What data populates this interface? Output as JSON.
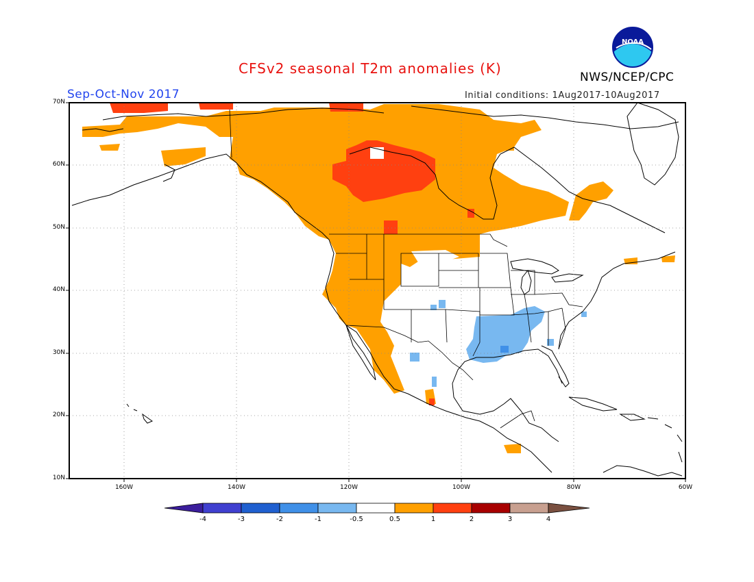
{
  "header": {
    "title": "CFSv2 seasonal T2m anomalies (K)",
    "organization": "NWS/NCEP/CPC",
    "logo_text": "NOAA",
    "season": "Sep-Oct-Nov 2017",
    "initial_conditions": "Initial conditions: 1Aug2017-10Aug2017"
  },
  "map": {
    "lat_labels": [
      "70N",
      "60N",
      "50N",
      "40N",
      "30N",
      "20N",
      "10N"
    ],
    "lon_labels": [
      "160W",
      "140W",
      "120W",
      "100W",
      "80W",
      "60W"
    ]
  },
  "colorbar": {
    "labels": [
      "-4",
      "-3",
      "-2",
      "-1",
      "-0.5",
      "0.5",
      "1",
      "2",
      "3",
      "4"
    ],
    "colors": [
      "#3b1e9c",
      "#4040d0",
      "#2060d0",
      "#4090e8",
      "#78b8f0",
      "#ffffff",
      "#ffa000",
      "#ff4010",
      "#a80000",
      "#c8a090",
      "#7a5040"
    ],
    "units": "K"
  },
  "colors": {
    "anomaly_0_5_to_1": "#ffa000",
    "anomaly_1_to_2": "#ff4010",
    "anomaly_minus_1_to_minus_0_5": "#78b8f0",
    "anomaly_minus_2_to_minus_1": "#4090e8"
  }
}
